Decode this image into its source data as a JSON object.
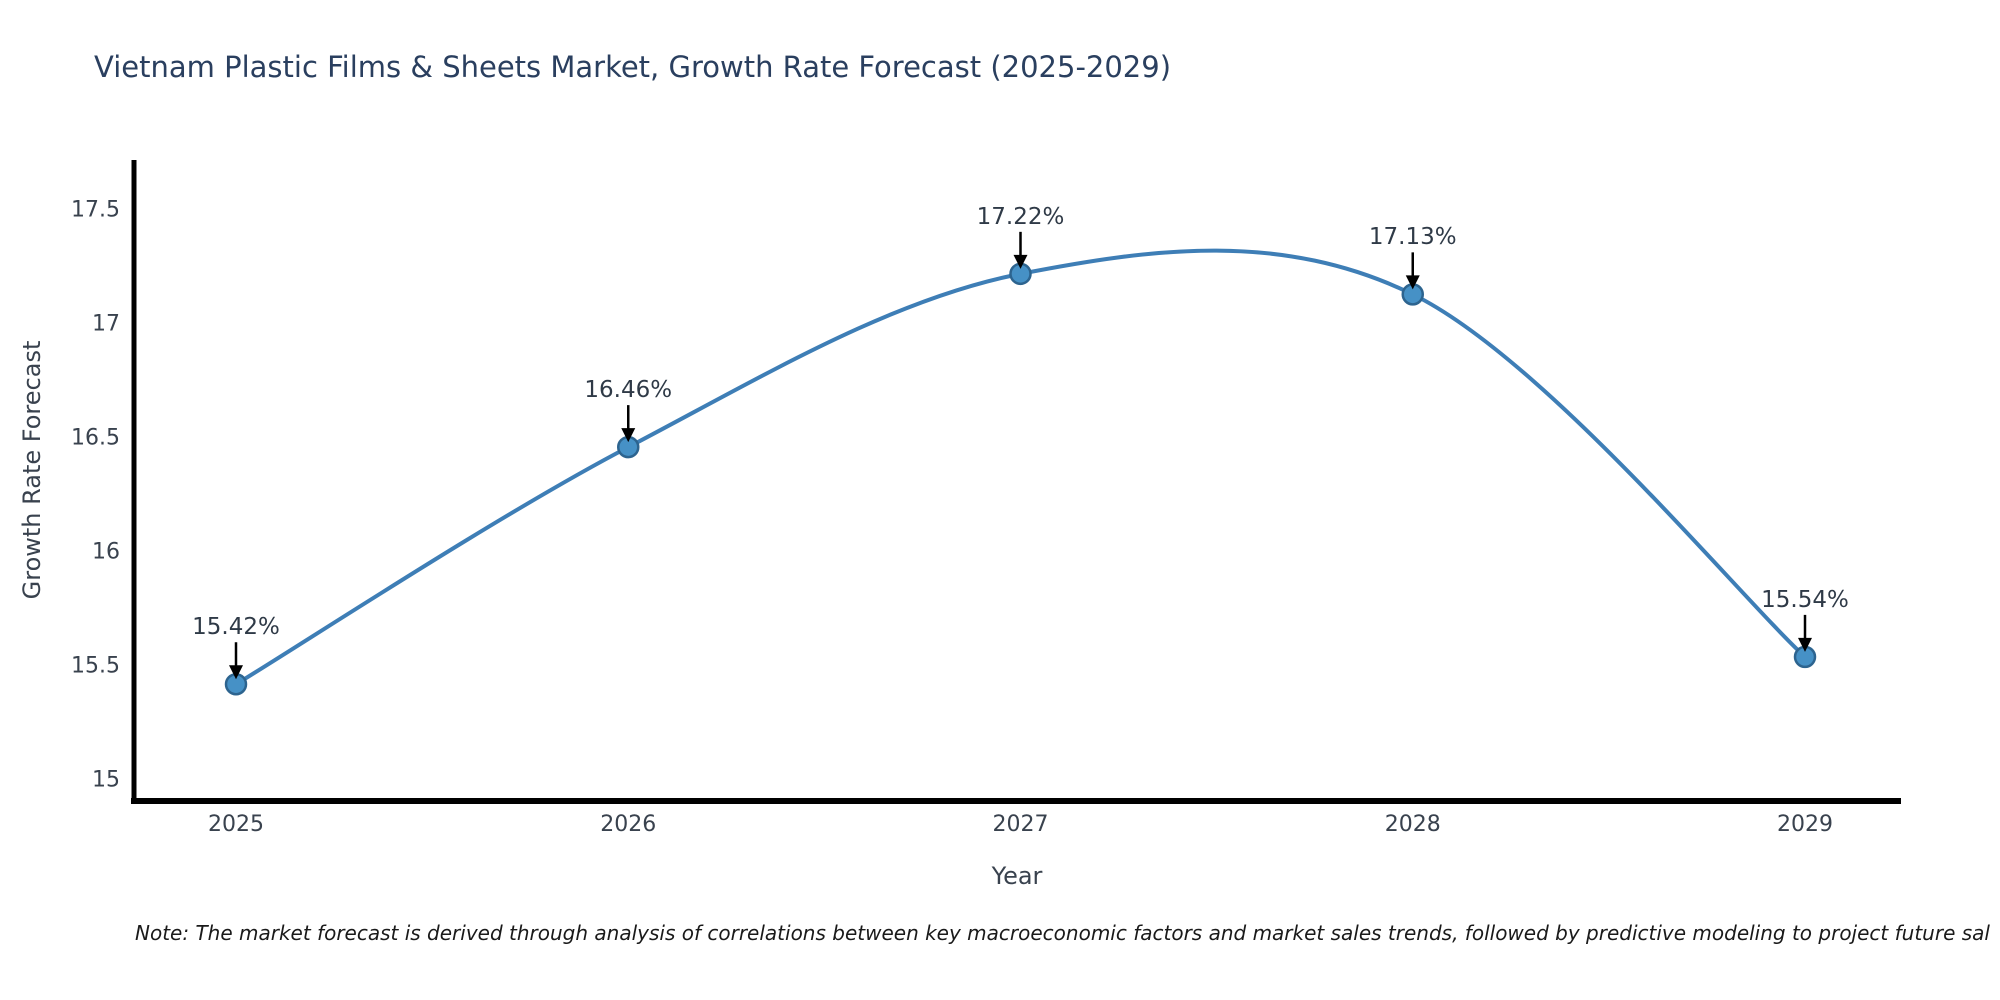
{
  "title": "Vietnam Plastic Films & Sheets Market, Growth Rate Forecast (2025-2029)",
  "note": "Note: The market forecast is derived through analysis of correlations between key macroeconomic factors and market sales trends, followed by predictive modeling to project future sal",
  "chart_data": {
    "type": "line",
    "title": "Vietnam Plastic Films & Sheets Market, Growth Rate Forecast (2025-2029)",
    "x": [
      2025,
      2026,
      2027,
      2028,
      2029
    ],
    "values": [
      15.42,
      16.46,
      17.22,
      17.13,
      15.54
    ],
    "point_labels": [
      "15.42%",
      "16.46%",
      "17.22%",
      "17.13%",
      "15.54%"
    ],
    "xlabel": "Year",
    "ylabel": "Growth Rate Forecast",
    "xtick_labels": [
      "2025",
      "2026",
      "2027",
      "2028",
      "2029"
    ],
    "yticks": [
      15,
      15.5,
      16,
      16.5,
      17,
      17.5
    ],
    "ytick_labels": [
      "15",
      "15.5",
      "16",
      "16.5",
      "17",
      "17.5"
    ],
    "xlim": [
      2024.74,
      2029.24
    ],
    "ylim": [
      14.9,
      17.72
    ],
    "grid": false,
    "legend": "none",
    "smooth": true,
    "line_color": "#3e7eb6",
    "marker_face": "#4691c6",
    "marker_edge": "#2d648f",
    "spine_color": "#000000",
    "arrow_color": "#000000",
    "background": "#ffffff"
  }
}
